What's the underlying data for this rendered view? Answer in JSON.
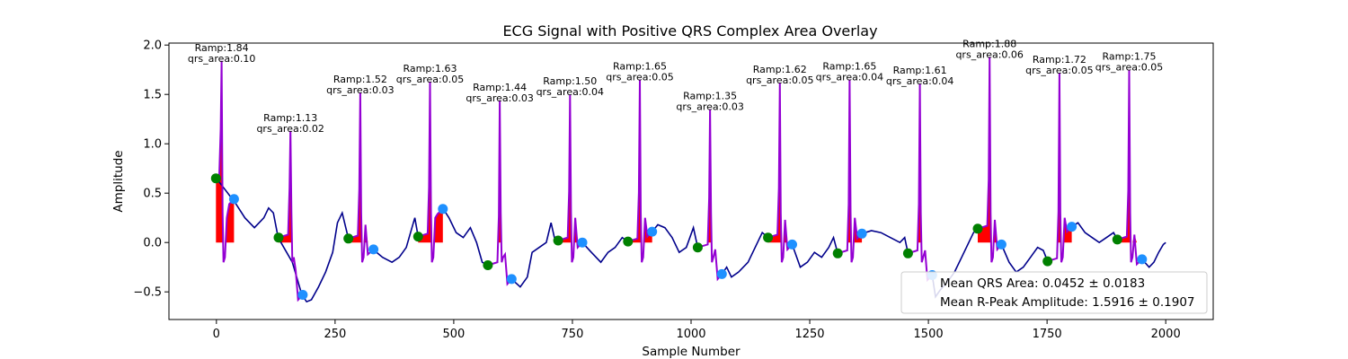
{
  "chart_data": {
    "type": "line",
    "title": "ECG Signal with Positive QRS Complex Area Overlay",
    "xlabel": "Sample Number",
    "ylabel": "Amplitude",
    "xlim": [
      -100,
      2100
    ],
    "ylim": [
      -0.78,
      2.02
    ],
    "xticks": [
      0,
      250,
      500,
      750,
      1000,
      1250,
      1500,
      1750,
      2000
    ],
    "xtick_labels": [
      "0",
      "250",
      "500",
      "750",
      "1000",
      "1250",
      "1500",
      "1750",
      "2000"
    ],
    "yticks": [
      -0.5,
      0.0,
      0.5,
      1.0,
      1.5,
      2.0
    ],
    "ytick_labels": [
      "−0.5",
      "0.0",
      "0.5",
      "1.0",
      "1.5",
      "2.0"
    ],
    "grid": false,
    "legend_placement": "lower-right",
    "colors": {
      "signal": "#00008b",
      "qrs_segment": "#9400d3",
      "qrs_area": "#ff0000",
      "onset_marker": "#008000",
      "offset_marker": "#1e90ff"
    },
    "beats": [
      {
        "r_x": 11,
        "r_amp": 1.84,
        "area": 0.1,
        "onset": [
          -1,
          0.65
        ],
        "offset": [
          37,
          0.44
        ],
        "amp_label": "Ramp:1.84",
        "area_label": "qrs_area:0.10"
      },
      {
        "r_x": 156,
        "r_amp": 1.13,
        "area": 0.02,
        "onset": [
          131,
          0.05
        ],
        "offset": [
          182,
          -0.53
        ],
        "amp_label": "Ramp:1.13",
        "area_label": "qrs_area:0.02"
      },
      {
        "r_x": 303,
        "r_amp": 1.52,
        "area": 0.03,
        "onset": [
          278,
          0.04
        ],
        "offset": [
          331,
          -0.07
        ],
        "amp_label": "Ramp:1.52",
        "area_label": "qrs_area:0.03"
      },
      {
        "r_x": 450,
        "r_amp": 1.63,
        "area": 0.05,
        "onset": [
          425,
          0.06
        ],
        "offset": [
          477,
          0.34
        ],
        "amp_label": "Ramp:1.63",
        "area_label": "qrs_area:0.05"
      },
      {
        "r_x": 597,
        "r_amp": 1.44,
        "area": 0.03,
        "onset": [
          572,
          -0.23
        ],
        "offset": [
          622,
          -0.37
        ],
        "amp_label": "Ramp:1.44",
        "area_label": "qrs_area:0.03"
      },
      {
        "r_x": 745,
        "r_amp": 1.5,
        "area": 0.04,
        "onset": [
          720,
          0.02
        ],
        "offset": [
          771,
          0.0
        ],
        "amp_label": "Ramp:1.50",
        "area_label": "qrs_area:0.04"
      },
      {
        "r_x": 892,
        "r_amp": 1.65,
        "area": 0.05,
        "onset": [
          867,
          0.01
        ],
        "offset": [
          918,
          0.11
        ],
        "amp_label": "Ramp:1.65",
        "area_label": "qrs_area:0.05"
      },
      {
        "r_x": 1040,
        "r_amp": 1.35,
        "area": 0.03,
        "onset": [
          1014,
          -0.05
        ],
        "offset": [
          1065,
          -0.32
        ],
        "amp_label": "Ramp:1.35",
        "area_label": "qrs_area:0.03"
      },
      {
        "r_x": 1187,
        "r_amp": 1.62,
        "area": 0.05,
        "onset": [
          1162,
          0.05
        ],
        "offset": [
          1213,
          -0.02
        ],
        "amp_label": "Ramp:1.62",
        "area_label": "qrs_area:0.05"
      },
      {
        "r_x": 1334,
        "r_amp": 1.65,
        "area": 0.04,
        "onset": [
          1309,
          -0.11
        ],
        "offset": [
          1360,
          0.09
        ],
        "amp_label": "Ramp:1.65",
        "area_label": "qrs_area:0.04"
      },
      {
        "r_x": 1482,
        "r_amp": 1.61,
        "area": 0.04,
        "onset": [
          1457,
          -0.11
        ],
        "offset": [
          1508,
          -0.33
        ],
        "amp_label": "Ramp:1.61",
        "area_label": "qrs_area:0.04"
      },
      {
        "r_x": 1629,
        "r_amp": 1.88,
        "area": 0.06,
        "onset": [
          1604,
          0.14
        ],
        "offset": [
          1654,
          -0.02
        ],
        "amp_label": "Ramp:1.88",
        "area_label": "qrs_area:0.06"
      },
      {
        "r_x": 1776,
        "r_amp": 1.72,
        "area": 0.05,
        "onset": [
          1751,
          -0.19
        ],
        "offset": [
          1802,
          0.16
        ],
        "amp_label": "Ramp:1.72",
        "area_label": "qrs_area:0.05"
      },
      {
        "r_x": 1923,
        "r_amp": 1.75,
        "area": 0.05,
        "onset": [
          1898,
          0.03
        ],
        "offset": [
          1950,
          -0.17
        ],
        "amp_label": "Ramp:1.75",
        "area_label": "qrs_area:0.05"
      }
    ],
    "baseline_points": [
      [
        0,
        0.65
      ],
      [
        40,
        0.4
      ],
      [
        60,
        0.25
      ],
      [
        80,
        0.15
      ],
      [
        100,
        0.25
      ],
      [
        110,
        0.35
      ],
      [
        120,
        0.3
      ],
      [
        130,
        0.05
      ],
      [
        160,
        -0.2
      ],
      [
        180,
        -0.53
      ],
      [
        190,
        -0.6
      ],
      [
        200,
        -0.58
      ],
      [
        215,
        -0.45
      ],
      [
        230,
        -0.3
      ],
      [
        245,
        -0.1
      ],
      [
        255,
        0.2
      ],
      [
        265,
        0.3
      ],
      [
        278,
        0.04
      ],
      [
        330,
        -0.07
      ],
      [
        350,
        -0.15
      ],
      [
        370,
        -0.2
      ],
      [
        385,
        -0.15
      ],
      [
        400,
        -0.05
      ],
      [
        412,
        0.15
      ],
      [
        418,
        0.25
      ],
      [
        425,
        0.06
      ],
      [
        478,
        0.34
      ],
      [
        490,
        0.25
      ],
      [
        505,
        0.1
      ],
      [
        520,
        0.05
      ],
      [
        535,
        0.15
      ],
      [
        548,
        0.0
      ],
      [
        560,
        -0.2
      ],
      [
        572,
        -0.23
      ],
      [
        622,
        -0.37
      ],
      [
        640,
        -0.45
      ],
      [
        655,
        -0.35
      ],
      [
        665,
        -0.1
      ],
      [
        680,
        -0.05
      ],
      [
        695,
        0.0
      ],
      [
        705,
        0.2
      ],
      [
        712,
        0.05
      ],
      [
        720,
        0.02
      ],
      [
        771,
        0.0
      ],
      [
        790,
        -0.1
      ],
      [
        810,
        -0.2
      ],
      [
        825,
        -0.1
      ],
      [
        840,
        -0.05
      ],
      [
        855,
        0.05
      ],
      [
        867,
        0.01
      ],
      [
        918,
        0.11
      ],
      [
        930,
        0.18
      ],
      [
        945,
        0.15
      ],
      [
        960,
        0.05
      ],
      [
        975,
        -0.1
      ],
      [
        990,
        -0.05
      ],
      [
        1005,
        0.15
      ],
      [
        1014,
        -0.05
      ],
      [
        1065,
        -0.32
      ],
      [
        1075,
        -0.25
      ],
      [
        1085,
        -0.35
      ],
      [
        1100,
        -0.3
      ],
      [
        1120,
        -0.2
      ],
      [
        1135,
        -0.05
      ],
      [
        1150,
        0.1
      ],
      [
        1162,
        0.05
      ],
      [
        1213,
        -0.02
      ],
      [
        1230,
        -0.25
      ],
      [
        1245,
        -0.2
      ],
      [
        1260,
        -0.1
      ],
      [
        1275,
        -0.15
      ],
      [
        1290,
        -0.05
      ],
      [
        1300,
        0.05
      ],
      [
        1309,
        -0.11
      ],
      [
        1360,
        0.09
      ],
      [
        1380,
        0.12
      ],
      [
        1400,
        0.1
      ],
      [
        1420,
        0.05
      ],
      [
        1440,
        0.0
      ],
      [
        1450,
        0.05
      ],
      [
        1457,
        -0.11
      ],
      [
        1508,
        -0.33
      ],
      [
        1515,
        -0.55
      ],
      [
        1525,
        -0.48
      ],
      [
        1540,
        -0.4
      ],
      [
        1555,
        -0.3
      ],
      [
        1570,
        -0.15
      ],
      [
        1585,
        0.0
      ],
      [
        1595,
        0.1
      ],
      [
        1604,
        0.14
      ],
      [
        1654,
        -0.02
      ],
      [
        1670,
        -0.2
      ],
      [
        1685,
        -0.3
      ],
      [
        1700,
        -0.25
      ],
      [
        1715,
        -0.15
      ],
      [
        1730,
        -0.05
      ],
      [
        1742,
        -0.08
      ],
      [
        1751,
        -0.19
      ],
      [
        1802,
        0.16
      ],
      [
        1815,
        0.2
      ],
      [
        1830,
        0.1
      ],
      [
        1845,
        0.05
      ],
      [
        1860,
        0.0
      ],
      [
        1875,
        0.05
      ],
      [
        1890,
        0.1
      ],
      [
        1898,
        0.03
      ],
      [
        1950,
        -0.17
      ],
      [
        1965,
        -0.25
      ],
      [
        1975,
        -0.2
      ],
      [
        1985,
        -0.1
      ],
      [
        1995,
        -0.02
      ],
      [
        2000,
        0.0
      ]
    ],
    "legend": [
      "Mean QRS Area: 0.0452 ± 0.0183",
      "Mean R-Peak Amplitude: 1.5916 ± 0.1907"
    ]
  }
}
